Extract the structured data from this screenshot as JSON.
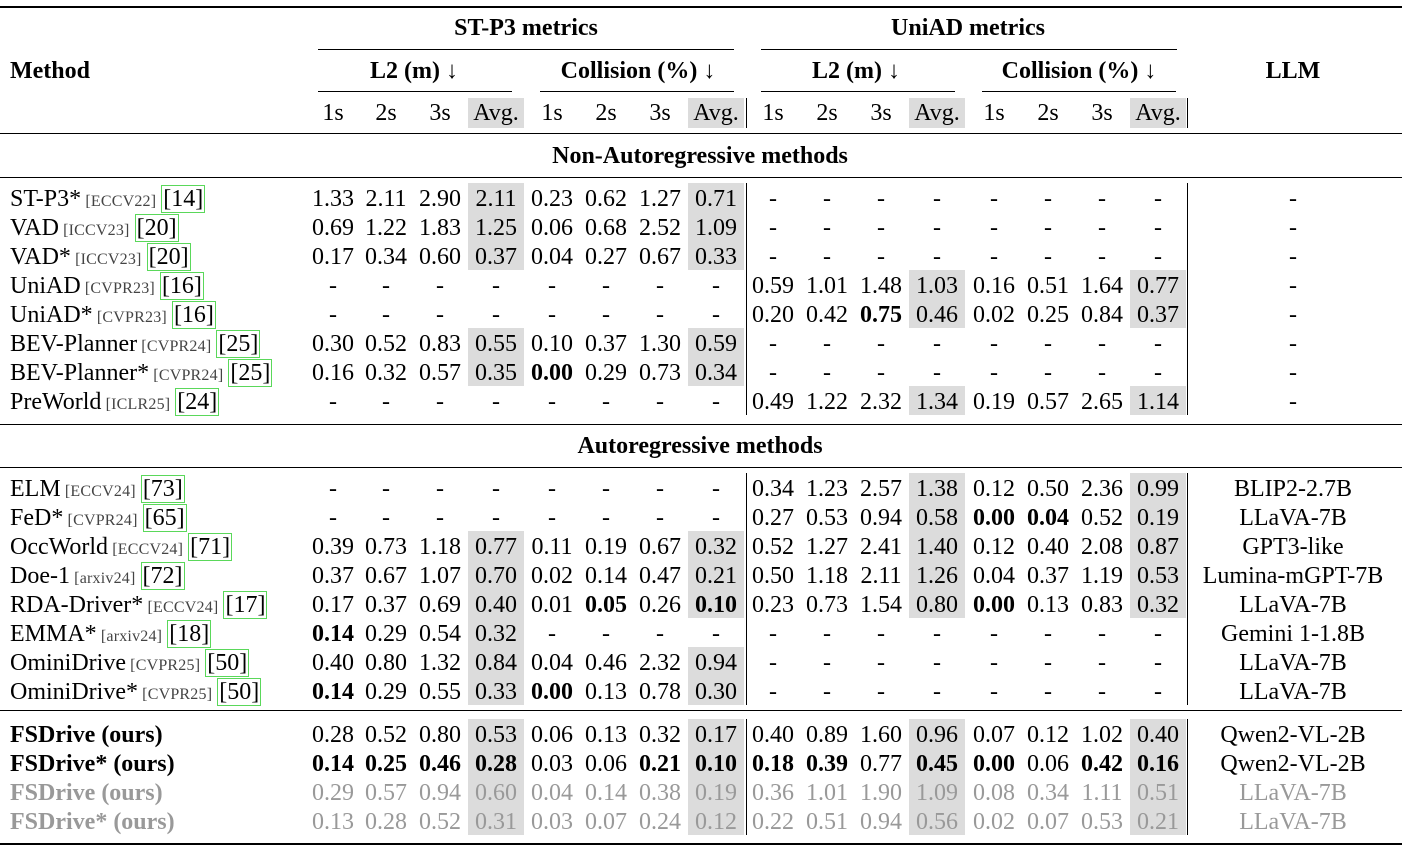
{
  "table": {
    "headers": {
      "method": "Method",
      "llm": "LLM",
      "stp3": "ST-P3 metrics",
      "uniad": "UniAD metrics",
      "l2": "L2 (m) ↓",
      "collision": "Collision (%) ↓",
      "sub": [
        "1s",
        "2s",
        "3s",
        "Avg."
      ]
    },
    "sections": [
      {
        "title": "Non-Autoregressive methods",
        "rows": [
          {
            "name": "ST-P3*",
            "venue": "[ECCV22]",
            "cite": "[14]",
            "cells": [
              "1.33",
              "2.11",
              "2.90",
              "2.11",
              "0.23",
              "0.62",
              "1.27",
              "0.71",
              "-",
              "-",
              "-",
              "-",
              "-",
              "-",
              "-",
              "-"
            ],
            "bold": [],
            "llm": "-"
          },
          {
            "name": "VAD",
            "venue": "[ICCV23]",
            "cite": "[20]",
            "cells": [
              "0.69",
              "1.22",
              "1.83",
              "1.25",
              "0.06",
              "0.68",
              "2.52",
              "1.09",
              "-",
              "-",
              "-",
              "-",
              "-",
              "-",
              "-",
              "-"
            ],
            "bold": [],
            "llm": "-"
          },
          {
            "name": "VAD*",
            "venue": "[ICCV23]",
            "cite": "[20]",
            "cells": [
              "0.17",
              "0.34",
              "0.60",
              "0.37",
              "0.04",
              "0.27",
              "0.67",
              "0.33",
              "-",
              "-",
              "-",
              "-",
              "-",
              "-",
              "-",
              "-"
            ],
            "bold": [],
            "llm": "-"
          },
          {
            "name": "UniAD",
            "venue": "[CVPR23]",
            "cite": "[16]",
            "cells": [
              "-",
              "-",
              "-",
              "-",
              "-",
              "-",
              "-",
              "-",
              "0.59",
              "1.01",
              "1.48",
              "1.03",
              "0.16",
              "0.51",
              "1.64",
              "0.77"
            ],
            "bold": [],
            "llm": "-"
          },
          {
            "name": "UniAD*",
            "venue": "[CVPR23]",
            "cite": "[16]",
            "cells": [
              "-",
              "-",
              "-",
              "-",
              "-",
              "-",
              "-",
              "-",
              "0.20",
              "0.42",
              "0.75",
              "0.46",
              "0.02",
              "0.25",
              "0.84",
              "0.37"
            ],
            "bold": [
              10
            ],
            "llm": "-"
          },
          {
            "name": "BEV-Planner",
            "venue": "[CVPR24]",
            "cite": "[25]",
            "cells": [
              "0.30",
              "0.52",
              "0.83",
              "0.55",
              "0.10",
              "0.37",
              "1.30",
              "0.59",
              "-",
              "-",
              "-",
              "-",
              "-",
              "-",
              "-",
              "-"
            ],
            "bold": [],
            "llm": "-"
          },
          {
            "name": "BEV-Planner*",
            "venue": "[CVPR24]",
            "cite": "[25]",
            "cells": [
              "0.16",
              "0.32",
              "0.57",
              "0.35",
              "0.00",
              "0.29",
              "0.73",
              "0.34",
              "-",
              "-",
              "-",
              "-",
              "-",
              "-",
              "-",
              "-"
            ],
            "bold": [
              4
            ],
            "llm": "-"
          },
          {
            "name": "PreWorld",
            "venue": "[ICLR25]",
            "cite": "[24]",
            "cells": [
              "-",
              "-",
              "-",
              "-",
              "-",
              "-",
              "-",
              "-",
              "0.49",
              "1.22",
              "2.32",
              "1.34",
              "0.19",
              "0.57",
              "2.65",
              "1.14"
            ],
            "bold": [],
            "llm": "-"
          }
        ]
      },
      {
        "title": "Autoregressive methods",
        "rows": [
          {
            "name": "ELM",
            "venue": "[ECCV24]",
            "cite": "[73]",
            "cells": [
              "-",
              "-",
              "-",
              "-",
              "-",
              "-",
              "-",
              "-",
              "0.34",
              "1.23",
              "2.57",
              "1.38",
              "0.12",
              "0.50",
              "2.36",
              "0.99"
            ],
            "bold": [],
            "llm": "BLIP2-2.7B"
          },
          {
            "name": "FeD*",
            "venue": "[CVPR24]",
            "cite": "[65]",
            "cells": [
              "-",
              "-",
              "-",
              "-",
              "-",
              "-",
              "-",
              "-",
              "0.27",
              "0.53",
              "0.94",
              "0.58",
              "0.00",
              "0.04",
              "0.52",
              "0.19"
            ],
            "bold": [
              12,
              13
            ],
            "llm": "LLaVA-7B"
          },
          {
            "name": "OccWorld",
            "venue": "[ECCV24]",
            "cite": "[71]",
            "cells": [
              "0.39",
              "0.73",
              "1.18",
              "0.77",
              "0.11",
              "0.19",
              "0.67",
              "0.32",
              "0.52",
              "1.27",
              "2.41",
              "1.40",
              "0.12",
              "0.40",
              "2.08",
              "0.87"
            ],
            "bold": [],
            "llm": "GPT3-like"
          },
          {
            "name": "Doe-1",
            "venue": "[arxiv24]",
            "cite": "[72]",
            "cells": [
              "0.37",
              "0.67",
              "1.07",
              "0.70",
              "0.02",
              "0.14",
              "0.47",
              "0.21",
              "0.50",
              "1.18",
              "2.11",
              "1.26",
              "0.04",
              "0.37",
              "1.19",
              "0.53"
            ],
            "bold": [],
            "llm": "Lumina-mGPT-7B"
          },
          {
            "name": "RDA-Driver*",
            "venue": "[ECCV24]",
            "cite": "[17]",
            "cells": [
              "0.17",
              "0.37",
              "0.69",
              "0.40",
              "0.01",
              "0.05",
              "0.26",
              "0.10",
              "0.23",
              "0.73",
              "1.54",
              "0.80",
              "0.00",
              "0.13",
              "0.83",
              "0.32"
            ],
            "bold": [
              5,
              7,
              12
            ],
            "llm": "LLaVA-7B"
          },
          {
            "name": "EMMA*",
            "venue": "[arxiv24]",
            "cite": "[18]",
            "cells": [
              "0.14",
              "0.29",
              "0.54",
              "0.32",
              "-",
              "-",
              "-",
              "-",
              "-",
              "-",
              "-",
              "-",
              "-",
              "-",
              "-",
              "-"
            ],
            "bold": [
              0
            ],
            "llm": "Gemini 1-1.8B"
          },
          {
            "name": "OminiDrive",
            "venue": "[CVPR25]",
            "cite": "[50]",
            "cells": [
              "0.40",
              "0.80",
              "1.32",
              "0.84",
              "0.04",
              "0.46",
              "2.32",
              "0.94",
              "-",
              "-",
              "-",
              "-",
              "-",
              "-",
              "-",
              "-"
            ],
            "bold": [],
            "llm": "LLaVA-7B"
          },
          {
            "name": "OminiDrive*",
            "venue": "[CVPR25]",
            "cite": "[50]",
            "cells": [
              "0.14",
              "0.29",
              "0.55",
              "0.33",
              "0.00",
              "0.13",
              "0.78",
              "0.30",
              "-",
              "-",
              "-",
              "-",
              "-",
              "-",
              "-",
              "-"
            ],
            "bold": [
              0,
              4
            ],
            "llm": "LLaVA-7B"
          }
        ]
      }
    ],
    "ours": [
      {
        "name": "FSDrive (ours)",
        "gray": false,
        "cells": [
          "0.28",
          "0.52",
          "0.80",
          "0.53",
          "0.06",
          "0.13",
          "0.32",
          "0.17",
          "0.40",
          "0.89",
          "1.60",
          "0.96",
          "0.07",
          "0.12",
          "1.02",
          "0.40"
        ],
        "bold": [],
        "llm": "Qwen2-VL-2B"
      },
      {
        "name": "FSDrive* (ours)",
        "gray": false,
        "cells": [
          "0.14",
          "0.25",
          "0.46",
          "0.28",
          "0.03",
          "0.06",
          "0.21",
          "0.10",
          "0.18",
          "0.39",
          "0.77",
          "0.45",
          "0.00",
          "0.06",
          "0.42",
          "0.16"
        ],
        "bold": [
          0,
          1,
          2,
          3,
          6,
          7,
          8,
          9,
          11,
          12,
          14,
          15
        ],
        "llm": "Qwen2-VL-2B"
      },
      {
        "name": "FSDrive (ours)",
        "gray": true,
        "cells": [
          "0.29",
          "0.57",
          "0.94",
          "0.60",
          "0.04",
          "0.14",
          "0.38",
          "0.19",
          "0.36",
          "1.01",
          "1.90",
          "1.09",
          "0.08",
          "0.34",
          "1.11",
          "0.51"
        ],
        "bold": [],
        "llm": "LLaVA-7B"
      },
      {
        "name": "FSDrive* (ours)",
        "gray": true,
        "cells": [
          "0.13",
          "0.28",
          "0.52",
          "0.31",
          "0.03",
          "0.07",
          "0.24",
          "0.12",
          "0.22",
          "0.51",
          "0.94",
          "0.56",
          "0.02",
          "0.07",
          "0.53",
          "0.21"
        ],
        "bold": [],
        "llm": "LLaVA-7B"
      }
    ]
  }
}
